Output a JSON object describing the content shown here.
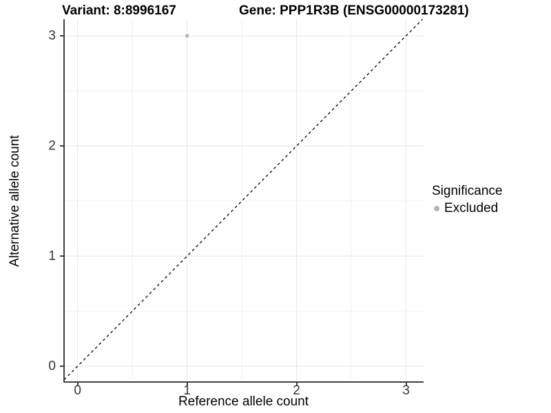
{
  "header": {
    "variant_title": "Variant: 8:8996167",
    "gene_title": "Gene: PPP1R3B (ENSG00000173281)"
  },
  "axes": {
    "x_label": "Reference allele count",
    "y_label": "Alternative allele count"
  },
  "legend": {
    "title": "Significance",
    "entries": [
      {
        "label": "Excluded",
        "color": "#b5b5b5"
      }
    ]
  },
  "chart_data": {
    "type": "scatter",
    "title": "Variant: 8:8996167   Gene: PPP1R3B (ENSG00000173281)",
    "xlabel": "Reference allele count",
    "ylabel": "Alternative allele count",
    "x_ticks": [
      0,
      1,
      2,
      3
    ],
    "y_ticks": [
      0,
      1,
      2,
      3
    ],
    "xlim": [
      -0.13,
      3.16
    ],
    "ylim": [
      -0.15,
      3.15
    ],
    "grid": "major at integers, minor at half-integers, light gray on white",
    "legend_position": "right",
    "series": [
      {
        "name": "Excluded",
        "color": "#b5b5b5",
        "points": [
          {
            "x": 1,
            "y": 3
          }
        ]
      }
    ],
    "reference_line": {
      "style": "dashed",
      "color": "#000000",
      "slope": 1,
      "intercept": 0
    }
  },
  "colors": {
    "point_excluded": "#b5b5b5",
    "grid_major": "#e6e6e6",
    "grid_minor": "#f2f2f2",
    "axis_line": "#3f3f3f",
    "dashed_line": "#000000"
  }
}
